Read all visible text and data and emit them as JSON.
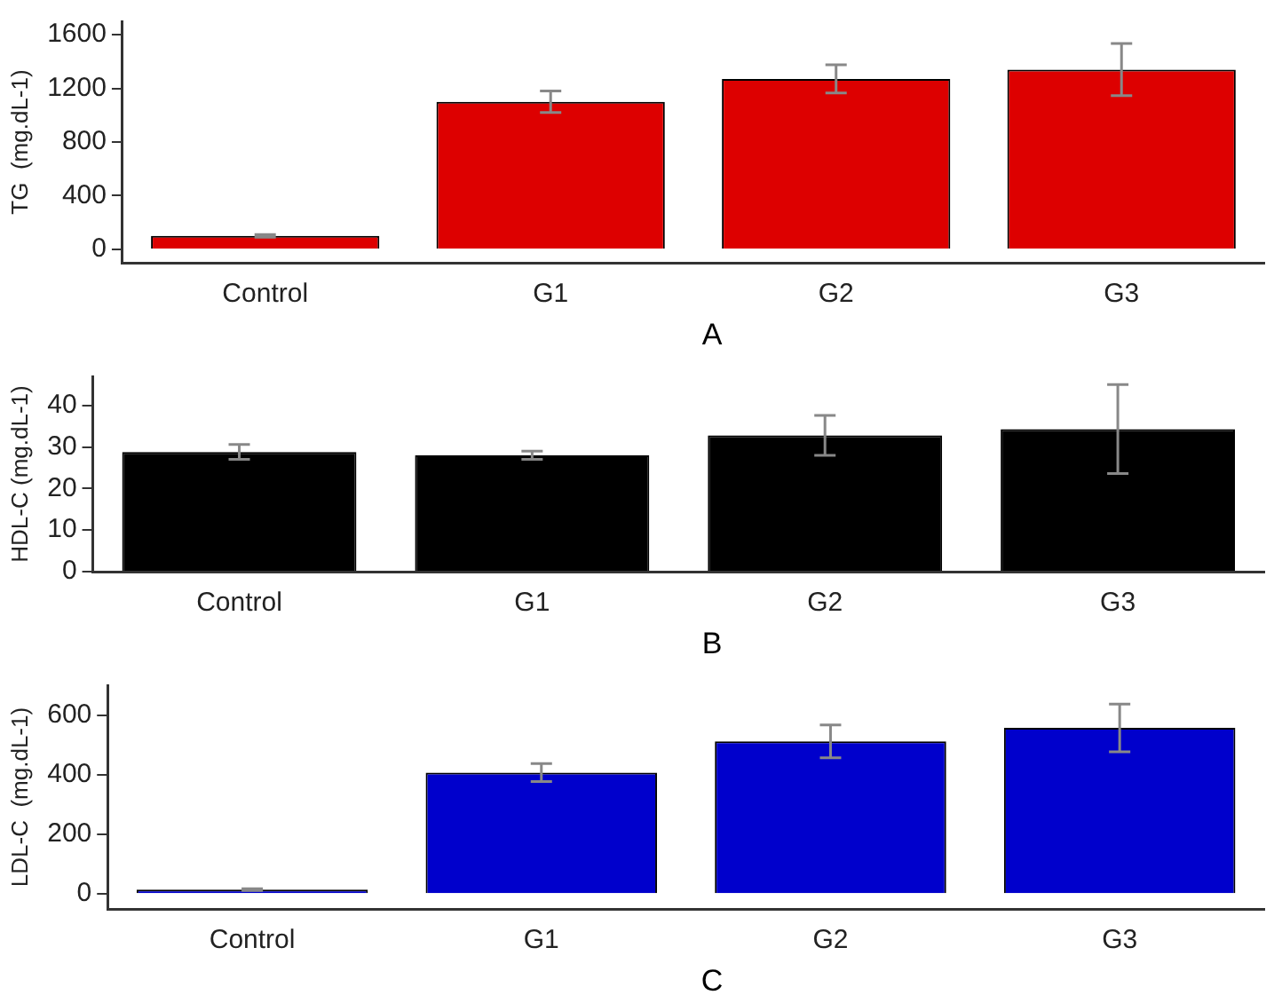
{
  "chart_data": [
    {
      "type": "bar",
      "ylabel": "TG  (mg.dL-1)",
      "categories": [
        "Control",
        "G1",
        "G2",
        "G3"
      ],
      "values": [
        100,
        1100,
        1270,
        1340
      ],
      "errors": [
        10,
        80,
        105,
        195
      ],
      "color": "#dd0000",
      "ylim": [
        -100,
        1700
      ],
      "yticks": [
        0,
        400,
        800,
        1200,
        1600
      ],
      "grid": false,
      "annotations": [
        "A"
      ]
    },
    {
      "type": "bar",
      "ylabel": "HDL-C (mg.dL-1)",
      "categories": [
        "Control",
        "G1",
        "G2",
        "G3"
      ],
      "values": [
        28.8,
        28,
        32.8,
        34.3
      ],
      "errors": [
        1.8,
        1,
        4.8,
        10.7
      ],
      "color": "#000000",
      "ylim": [
        0,
        47
      ],
      "yticks": [
        0,
        10,
        20,
        30,
        40
      ],
      "grid": false,
      "annotations": [
        "B"
      ]
    },
    {
      "type": "bar",
      "ylabel": "LDL-C  (mg.dL-1)",
      "categories": [
        "Control",
        "G1",
        "G2",
        "G3"
      ],
      "values": [
        15,
        407,
        512,
        557
      ],
      "errors": [
        3,
        30,
        55,
        80
      ],
      "color": "#0000cc",
      "ylim": [
        -50,
        700
      ],
      "yticks": [
        0,
        200,
        400,
        600
      ],
      "grid": false,
      "annotations": [
        "C"
      ]
    }
  ]
}
